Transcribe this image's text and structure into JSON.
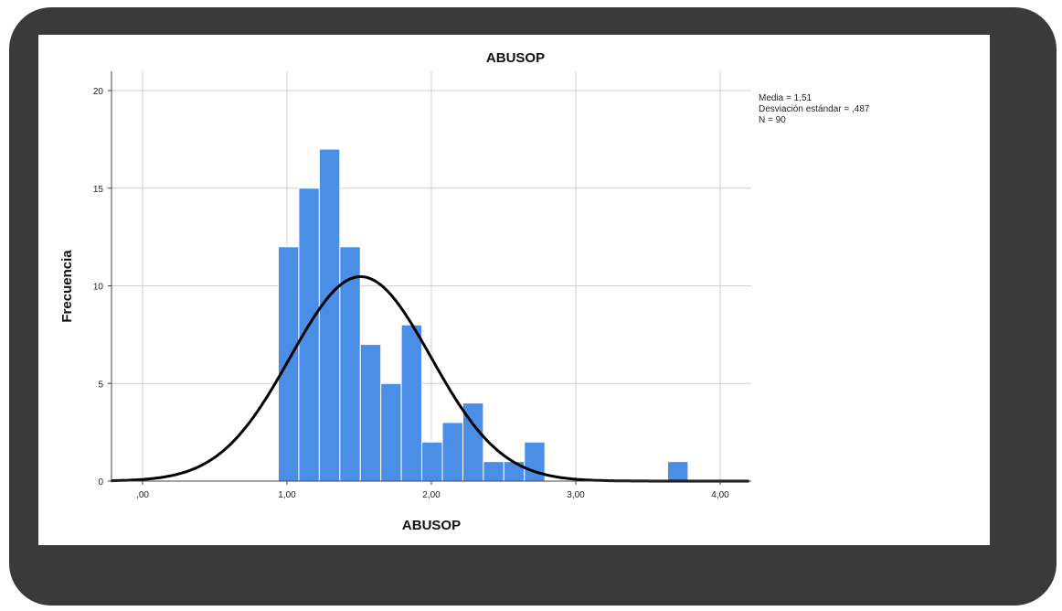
{
  "chart_data": {
    "type": "bar",
    "title": "ABUSOP",
    "xlabel": "ABUSOP",
    "ylabel": "Frecuencia",
    "xlim": [
      -0.22,
      4.2
    ],
    "ylim": [
      0,
      21
    ],
    "x_ticks": [
      0,
      1,
      2,
      3,
      4
    ],
    "x_tick_labels": [
      ",00",
      "1,00",
      "2,00",
      "3,00",
      "4,00"
    ],
    "y_ticks": [
      0,
      5,
      10,
      15,
      20
    ],
    "y_tick_labels": [
      "0",
      "5",
      "10",
      "15",
      "20"
    ],
    "bin_width": 0.142,
    "bins": [
      {
        "start": 0.94,
        "count": 12
      },
      {
        "start": 1.082,
        "count": 15
      },
      {
        "start": 1.224,
        "count": 17
      },
      {
        "start": 1.366,
        "count": 12
      },
      {
        "start": 1.508,
        "count": 7
      },
      {
        "start": 1.65,
        "count": 5
      },
      {
        "start": 1.792,
        "count": 8
      },
      {
        "start": 1.934,
        "count": 2
      },
      {
        "start": 2.076,
        "count": 3
      },
      {
        "start": 2.218,
        "count": 4
      },
      {
        "start": 2.36,
        "count": 1
      },
      {
        "start": 2.502,
        "count": 1
      },
      {
        "start": 2.644,
        "count": 2
      },
      {
        "start": 3.636,
        "count": 1
      }
    ],
    "normal_curve": {
      "mean": 1.51,
      "sd": 0.487,
      "n": 90
    },
    "grid": true,
    "bar_color": "#4a8ee6",
    "curve_color": "#000000",
    "stats_lines": [
      "Media = 1,51",
      "Desviación estándar = ,487",
      "N = 90"
    ],
    "legend_position": "top-right"
  }
}
